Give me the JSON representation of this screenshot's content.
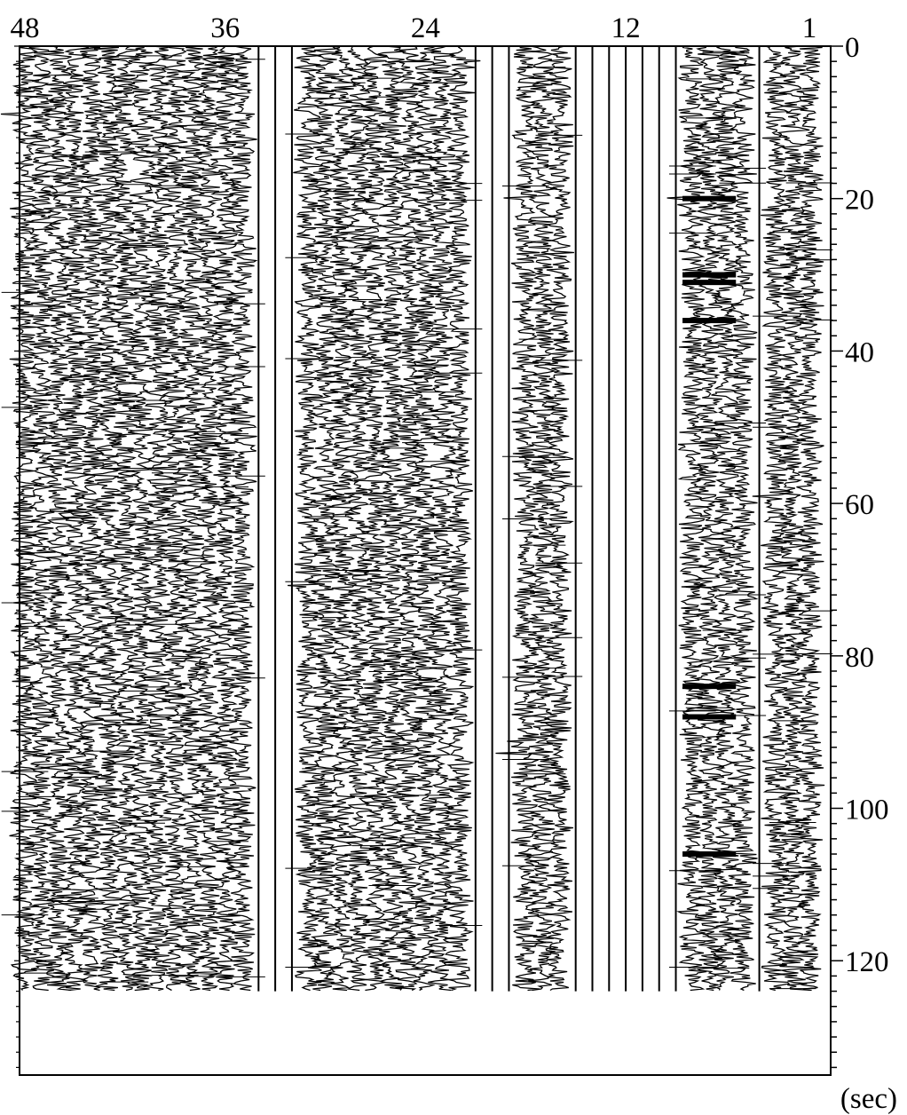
{
  "chart_data": {
    "type": "seismic-trace-plot",
    "title": "",
    "xlabel": "",
    "ylabel": "(sec)",
    "channel_count": 48,
    "channel_tick_labels": [
      "48",
      "36",
      "24",
      "12",
      "1"
    ],
    "channel_tick_values": [
      48,
      36,
      24,
      12,
      1
    ],
    "channel_order": "descending-left-to-right",
    "ylim": [
      0,
      135
    ],
    "y_ticks": [
      0,
      20,
      40,
      60,
      80,
      100,
      120
    ],
    "y_tick_labels": [
      "0",
      "20",
      "40",
      "60",
      "80",
      "100",
      "120"
    ],
    "y_minor_tick_step": 2,
    "record_end_sec": 124,
    "dead_channels": [
      4,
      9,
      10,
      11,
      12,
      13,
      14,
      15,
      19,
      20,
      21,
      32,
      33,
      34
    ],
    "spike_channels": [
      7
    ],
    "trace_color": "#000000",
    "background_color": "#ffffff"
  }
}
